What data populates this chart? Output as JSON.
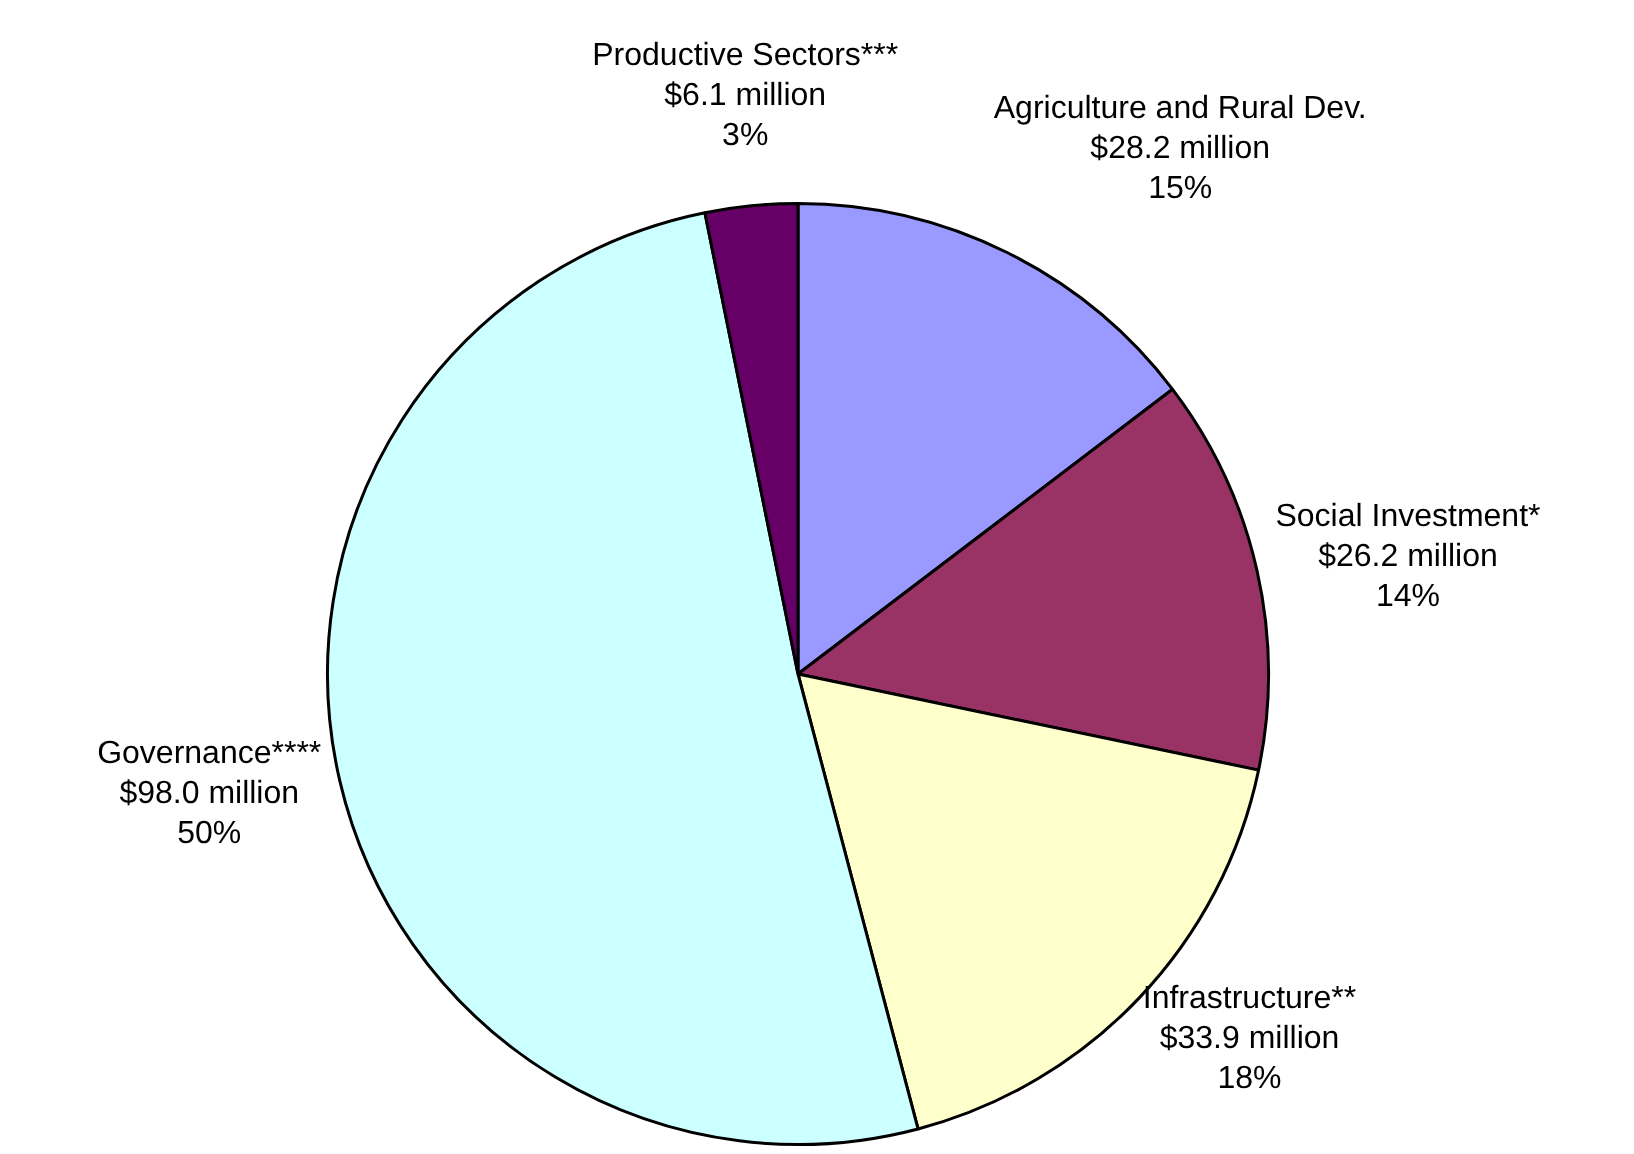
{
  "chart_data": {
    "type": "pie",
    "categories": [
      "Agriculture and Rural Dev.",
      "Social Investment*",
      "Infrastructure**",
      "Governance****",
      "Productive Sectors***"
    ],
    "values": [
      28.2,
      26.2,
      33.9,
      98.0,
      6.1
    ],
    "value_labels": [
      "$28.2 million",
      "$26.2 million",
      "$33.9 million",
      "$98.0 million",
      "$6.1 million"
    ],
    "colors": [
      "#9999ff",
      "#993366",
      "#ffffcc",
      "#ccffff",
      "#660066"
    ],
    "annotations": [
      {
        "text": "15%",
        "x": "Agriculture and Rural Dev."
      },
      {
        "text": "14%",
        "x": "Social Investment*"
      },
      {
        "text": "18%",
        "x": "Infrastructure**"
      },
      {
        "text": "50%",
        "x": "Governance****"
      },
      {
        "text": "3%",
        "x": "Productive Sectors***"
      }
    ]
  }
}
